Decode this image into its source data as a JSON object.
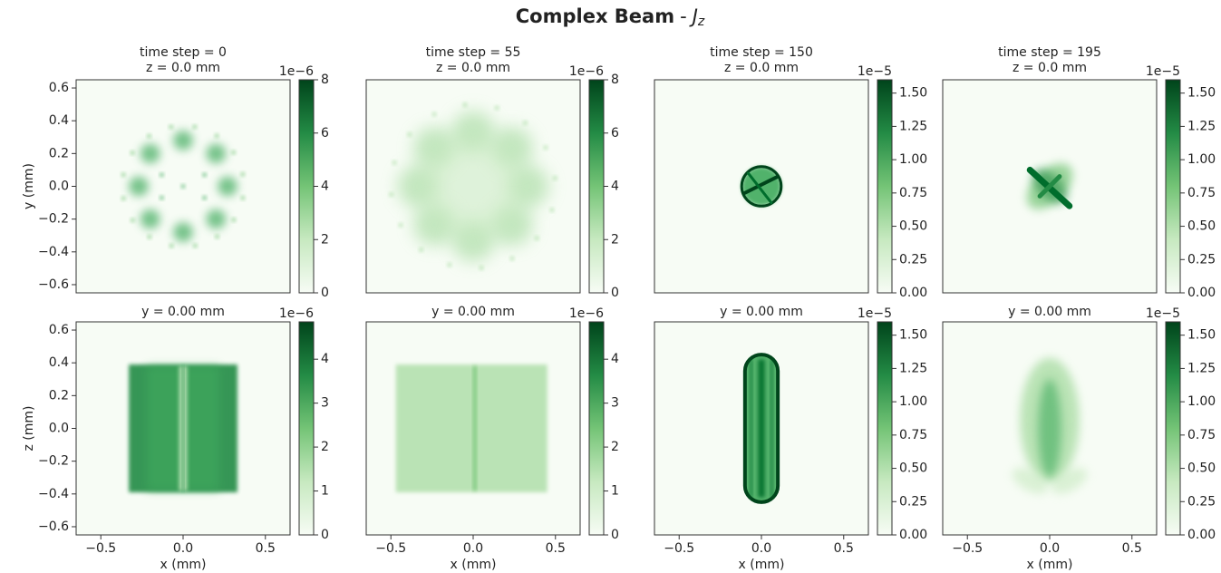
{
  "title": {
    "text": "Complex  Beam",
    "separator": "-",
    "symbol": "J",
    "subscript": "z"
  },
  "chart_data": [
    {
      "type": "heatmap",
      "title": "time step =  0",
      "subtitle": "z = 0.0 mm",
      "ylabel": "y (mm)",
      "xlim": [
        -0.65,
        0.65
      ],
      "ylim": [
        -0.65,
        0.65
      ],
      "yticks": [
        {
          "value": -0.6,
          "label": "−0.6"
        },
        {
          "value": -0.4,
          "label": "−0.4"
        },
        {
          "value": -0.2,
          "label": "−0.2"
        },
        {
          "value": 0,
          "label": "0.0"
        },
        0.2,
        0.4,
        0.6
      ],
      "colorbar": {
        "lim": [
          0,
          8
        ],
        "ticks": [
          0,
          2,
          4,
          6,
          8
        ],
        "offset": "1e−6"
      }
    },
    {
      "type": "heatmap",
      "title": "time step = 55",
      "subtitle": "z = 0.0 mm",
      "xlim": [
        -0.65,
        0.65
      ],
      "ylim": [
        -0.65,
        0.65
      ],
      "colorbar": {
        "lim": [
          0,
          8
        ],
        "ticks": [
          0,
          2,
          4,
          6,
          8
        ],
        "offset": "1e−6"
      }
    },
    {
      "type": "heatmap",
      "title": "time step = 150",
      "subtitle": "z = 0.0 mm",
      "xlim": [
        -0.65,
        0.65
      ],
      "ylim": [
        -0.65,
        0.65
      ],
      "colorbar": {
        "lim": [
          0,
          1.6
        ],
        "ticks": [
          {
            "value": 0,
            "label": "0.00"
          },
          0.25,
          {
            "value": 0.5,
            "label": "0.50"
          },
          0.75,
          {
            "value": 1,
            "label": "1.00"
          },
          1.25,
          {
            "value": 1.5,
            "label": "1.50"
          }
        ],
        "offset": "1e−5"
      }
    },
    {
      "type": "heatmap",
      "title": "time step = 195",
      "subtitle": "z = 0.0 mm",
      "xlim": [
        -0.65,
        0.65
      ],
      "ylim": [
        -0.65,
        0.65
      ],
      "colorbar": {
        "lim": [
          0,
          1.6
        ],
        "ticks": [
          {
            "value": 0,
            "label": "0.00"
          },
          0.25,
          {
            "value": 0.5,
            "label": "0.50"
          },
          0.75,
          {
            "value": 1,
            "label": "1.00"
          },
          1.25,
          {
            "value": 1.5,
            "label": "1.50"
          }
        ],
        "offset": "1e−5"
      }
    },
    {
      "type": "heatmap",
      "title": "y = 0.00 mm",
      "xlabel": "x (mm)",
      "ylabel": "z (mm)",
      "xlim": [
        -0.65,
        0.65
      ],
      "ylim": [
        -0.65,
        0.65
      ],
      "xticks": [
        {
          "value": -0.5,
          "label": "−0.5"
        },
        {
          "value": 0,
          "label": "0.0"
        },
        0.5
      ],
      "yticks": [
        {
          "value": -0.6,
          "label": "−0.6"
        },
        {
          "value": -0.4,
          "label": "−0.4"
        },
        {
          "value": -0.2,
          "label": "−0.2"
        },
        {
          "value": 0,
          "label": "0.0"
        },
        0.2,
        0.4,
        0.6
      ],
      "colorbar": {
        "lim": [
          0,
          4.85
        ],
        "ticks": [
          0,
          1,
          2,
          3,
          4
        ],
        "offset": "1e−6"
      }
    },
    {
      "type": "heatmap",
      "title": "y = 0.00 mm",
      "xlabel": "x (mm)",
      "xlim": [
        -0.65,
        0.65
      ],
      "ylim": [
        -0.65,
        0.65
      ],
      "xticks": [
        {
          "value": -0.5,
          "label": "−0.5"
        },
        {
          "value": 0,
          "label": "0.0"
        },
        0.5
      ],
      "colorbar": {
        "lim": [
          0,
          4.85
        ],
        "ticks": [
          0,
          1,
          2,
          3,
          4
        ],
        "offset": "1e−6"
      }
    },
    {
      "type": "heatmap",
      "title": "y = 0.00 mm",
      "xlabel": "x (mm)",
      "xlim": [
        -0.65,
        0.65
      ],
      "ylim": [
        -0.65,
        0.65
      ],
      "xticks": [
        {
          "value": -0.5,
          "label": "−0.5"
        },
        {
          "value": 0,
          "label": "0.0"
        },
        0.5
      ],
      "colorbar": {
        "lim": [
          0,
          1.6
        ],
        "ticks": [
          {
            "value": 0,
            "label": "0.00"
          },
          0.25,
          {
            "value": 0.5,
            "label": "0.50"
          },
          0.75,
          {
            "value": 1,
            "label": "1.00"
          },
          1.25,
          {
            "value": 1.5,
            "label": "1.50"
          }
        ],
        "offset": "1e−5"
      }
    },
    {
      "type": "heatmap",
      "title": "y = 0.00 mm",
      "xlabel": "x (mm)",
      "xlim": [
        -0.65,
        0.65
      ],
      "ylim": [
        -0.65,
        0.65
      ],
      "xticks": [
        {
          "value": -0.5,
          "label": "−0.5"
        },
        {
          "value": 0,
          "label": "0.0"
        },
        0.5
      ],
      "colorbar": {
        "lim": [
          0,
          1.6
        ],
        "ticks": [
          {
            "value": 0,
            "label": "0.00"
          },
          0.25,
          {
            "value": 0.5,
            "label": "0.50"
          },
          0.75,
          {
            "value": 1,
            "label": "1.00"
          },
          1.25,
          {
            "value": 1.5,
            "label": "1.50"
          }
        ],
        "offset": "1e−5"
      }
    }
  ]
}
